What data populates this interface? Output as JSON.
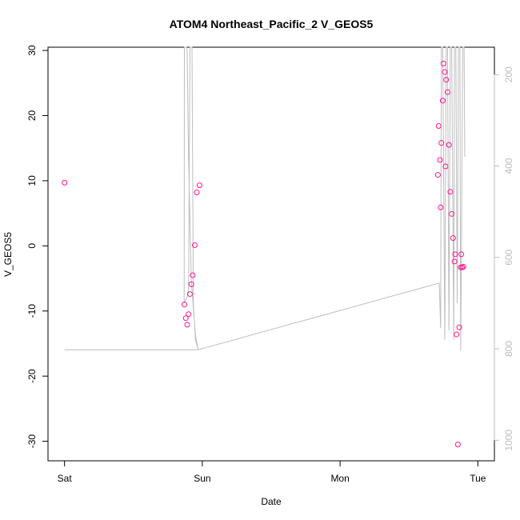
{
  "chart_data": {
    "type": "scatter",
    "title": "ATOM4 Northeast_Pacific_2 V_GEOS5",
    "xlabel": "Date",
    "ylabel": "V_GEOS5",
    "x_tick_labels": [
      "Sat",
      "Sun",
      "Mon",
      "Tue"
    ],
    "x_tick_values": [
      0,
      1,
      2,
      3
    ],
    "xlim": [
      -0.12,
      3.12
    ],
    "ylim": [
      -33,
      30.5
    ],
    "y_ticks": [
      -30,
      -20,
      -10,
      0,
      10,
      20,
      30
    ],
    "grid": false,
    "series": [
      {
        "axis": "left",
        "marker": "circle-open",
        "color": "#ff1493",
        "points": [
          [
            0.0,
            9.7
          ],
          [
            0.87,
            -9.0
          ],
          [
            0.88,
            -11.1
          ],
          [
            0.89,
            -12.1
          ],
          [
            0.9,
            -10.5
          ],
          [
            0.91,
            -7.4
          ],
          [
            0.92,
            -5.9
          ],
          [
            0.93,
            -4.5
          ],
          [
            0.945,
            0.1
          ],
          [
            0.96,
            8.2
          ],
          [
            0.98,
            9.3
          ],
          [
            2.71,
            10.9
          ],
          [
            2.715,
            18.4
          ],
          [
            2.725,
            13.2
          ],
          [
            2.73,
            5.9
          ],
          [
            2.735,
            15.8
          ],
          [
            2.745,
            22.3
          ],
          [
            2.75,
            28.0
          ],
          [
            2.76,
            26.7
          ],
          [
            2.765,
            12.2
          ],
          [
            2.77,
            25.5
          ],
          [
            2.78,
            23.6
          ],
          [
            2.79,
            15.5
          ],
          [
            2.8,
            8.3
          ],
          [
            2.81,
            4.9
          ],
          [
            2.82,
            1.2
          ],
          [
            2.83,
            -2.4
          ],
          [
            2.835,
            -1.3
          ],
          [
            2.845,
            -13.6
          ],
          [
            2.855,
            -30.5
          ],
          [
            2.865,
            -12.5
          ],
          [
            2.875,
            -3.3
          ],
          [
            2.88,
            -1.3
          ],
          [
            2.885,
            -3.3
          ],
          [
            2.895,
            -3.2
          ]
        ]
      },
      {
        "axis": "right",
        "type": "line",
        "color": "#bdbdbd",
        "ylim": [
          1045,
          140
        ],
        "y_ticks": [
          200,
          400,
          600,
          800,
          1000
        ],
        "points": [
          [
            0.0,
            802
          ],
          [
            0.9,
            802
          ],
          [
            0.97,
            802
          ],
          [
            0.95,
            770
          ],
          [
            0.92,
            650
          ],
          [
            0.9,
            380
          ],
          [
            0.89,
            148
          ],
          [
            0.885,
            140
          ],
          [
            0.87,
            140
          ],
          [
            0.868,
            700
          ],
          [
            0.9,
            680
          ],
          [
            0.91,
            140
          ],
          [
            0.925,
            140
          ],
          [
            0.935,
            700
          ],
          [
            0.95,
            780
          ],
          [
            0.97,
            802
          ],
          [
            2.72,
            656
          ],
          [
            2.73,
            755
          ],
          [
            2.735,
            140
          ],
          [
            2.745,
            140
          ],
          [
            2.76,
            780
          ],
          [
            2.77,
            140
          ],
          [
            2.78,
            140
          ],
          [
            2.79,
            760
          ],
          [
            2.8,
            140
          ],
          [
            2.81,
            140
          ],
          [
            2.825,
            780
          ],
          [
            2.83,
            140
          ],
          [
            2.84,
            140
          ],
          [
            2.85,
            700
          ],
          [
            2.86,
            140
          ],
          [
            2.87,
            140
          ],
          [
            2.875,
            805
          ],
          [
            2.88,
            600
          ],
          [
            2.89,
            140
          ],
          [
            2.9,
            140
          ],
          [
            2.905,
            380
          ]
        ]
      }
    ]
  }
}
